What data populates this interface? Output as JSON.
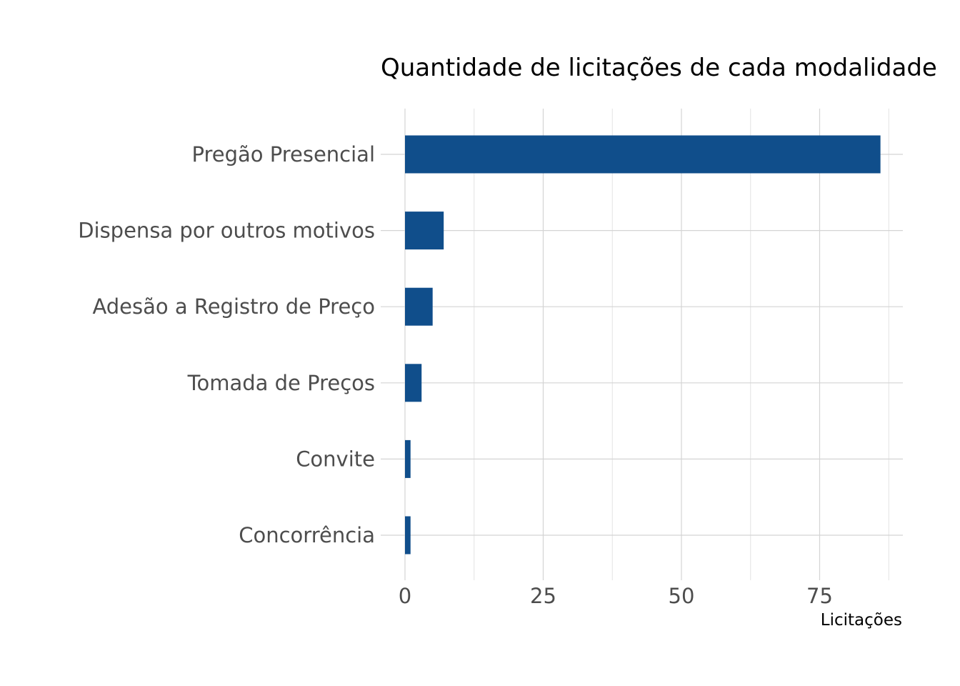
{
  "chart_data": {
    "type": "bar",
    "orientation": "horizontal",
    "title": "Quantidade de licitações de cada modalidade",
    "xlabel": "Licitações",
    "ylabel": "",
    "categories": [
      "Pregão Presencial",
      "Dispensa por outros motivos",
      "Adesão a Registro de Preço",
      "Tomada de Preços",
      "Convite",
      "Concorrência"
    ],
    "values": [
      86,
      7,
      5,
      3,
      1,
      1
    ],
    "xlim": [
      0,
      90
    ],
    "xticks": [
      0,
      25,
      50,
      75
    ],
    "xtick_labels": [
      "0",
      "25",
      "50",
      "75"
    ],
    "grid": true,
    "legend": "none",
    "bar_color": "#104e8b"
  }
}
